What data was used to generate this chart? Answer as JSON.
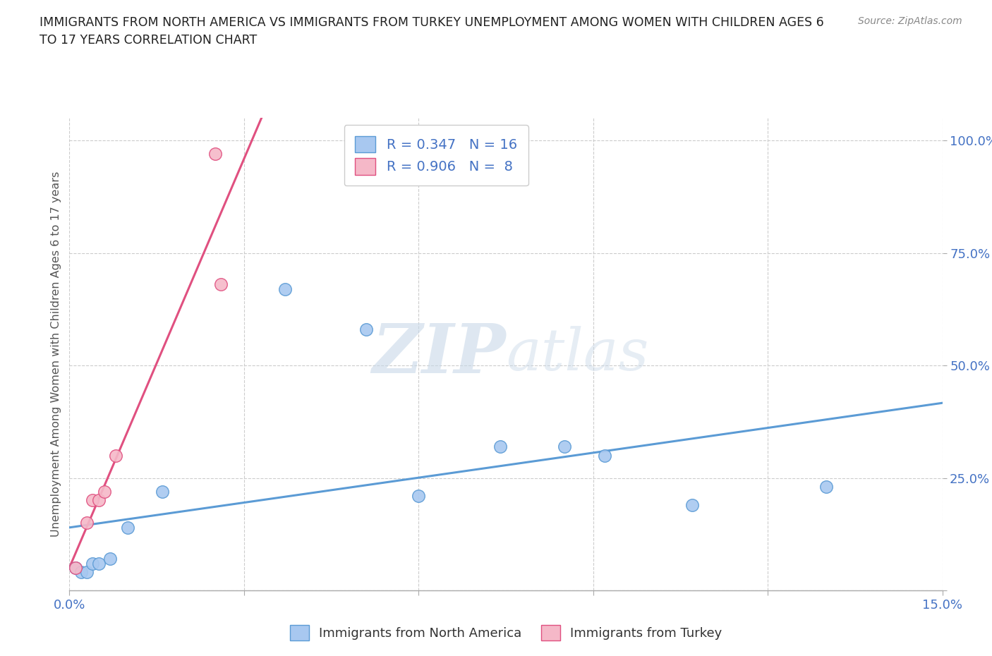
{
  "title": "IMMIGRANTS FROM NORTH AMERICA VS IMMIGRANTS FROM TURKEY UNEMPLOYMENT AMONG WOMEN WITH CHILDREN AGES 6\nTO 17 YEARS CORRELATION CHART",
  "source": "Source: ZipAtlas.com",
  "ylabel_label": "Unemployment Among Women with Children Ages 6 to 17 years",
  "xlim": [
    0.0,
    0.15
  ],
  "ylim": [
    0.0,
    1.05
  ],
  "xticks": [
    0.0,
    0.03,
    0.06,
    0.09,
    0.12,
    0.15
  ],
  "xtick_labels": [
    "0.0%",
    "",
    "",
    "",
    "",
    "15.0%"
  ],
  "ytick_vals": [
    0.0,
    0.25,
    0.5,
    0.75,
    1.0
  ],
  "ytick_labels": [
    "",
    "25.0%",
    "50.0%",
    "75.0%",
    "100.0%"
  ],
  "north_america_x": [
    0.001,
    0.002,
    0.003,
    0.004,
    0.005,
    0.007,
    0.01,
    0.016,
    0.037,
    0.051,
    0.06,
    0.074,
    0.085,
    0.092,
    0.107,
    0.13
  ],
  "north_america_y": [
    0.05,
    0.04,
    0.04,
    0.06,
    0.06,
    0.07,
    0.14,
    0.22,
    0.67,
    0.58,
    0.21,
    0.32,
    0.32,
    0.3,
    0.19,
    0.23
  ],
  "turkey_x": [
    0.001,
    0.003,
    0.004,
    0.005,
    0.006,
    0.008,
    0.025,
    0.026
  ],
  "turkey_y": [
    0.05,
    0.15,
    0.2,
    0.2,
    0.22,
    0.3,
    0.97,
    0.68
  ],
  "north_america_color": "#a8c8f0",
  "turkey_color": "#f5b8c8",
  "north_america_line_color": "#5b9bd5",
  "turkey_line_color": "#e05080",
  "north_america_R": 0.347,
  "north_america_N": 16,
  "turkey_R": 0.906,
  "turkey_N": 8,
  "dot_size": 160,
  "watermark_zip": "ZIP",
  "watermark_atlas": "atlas",
  "background_color": "#ffffff",
  "grid_color": "#cccccc"
}
